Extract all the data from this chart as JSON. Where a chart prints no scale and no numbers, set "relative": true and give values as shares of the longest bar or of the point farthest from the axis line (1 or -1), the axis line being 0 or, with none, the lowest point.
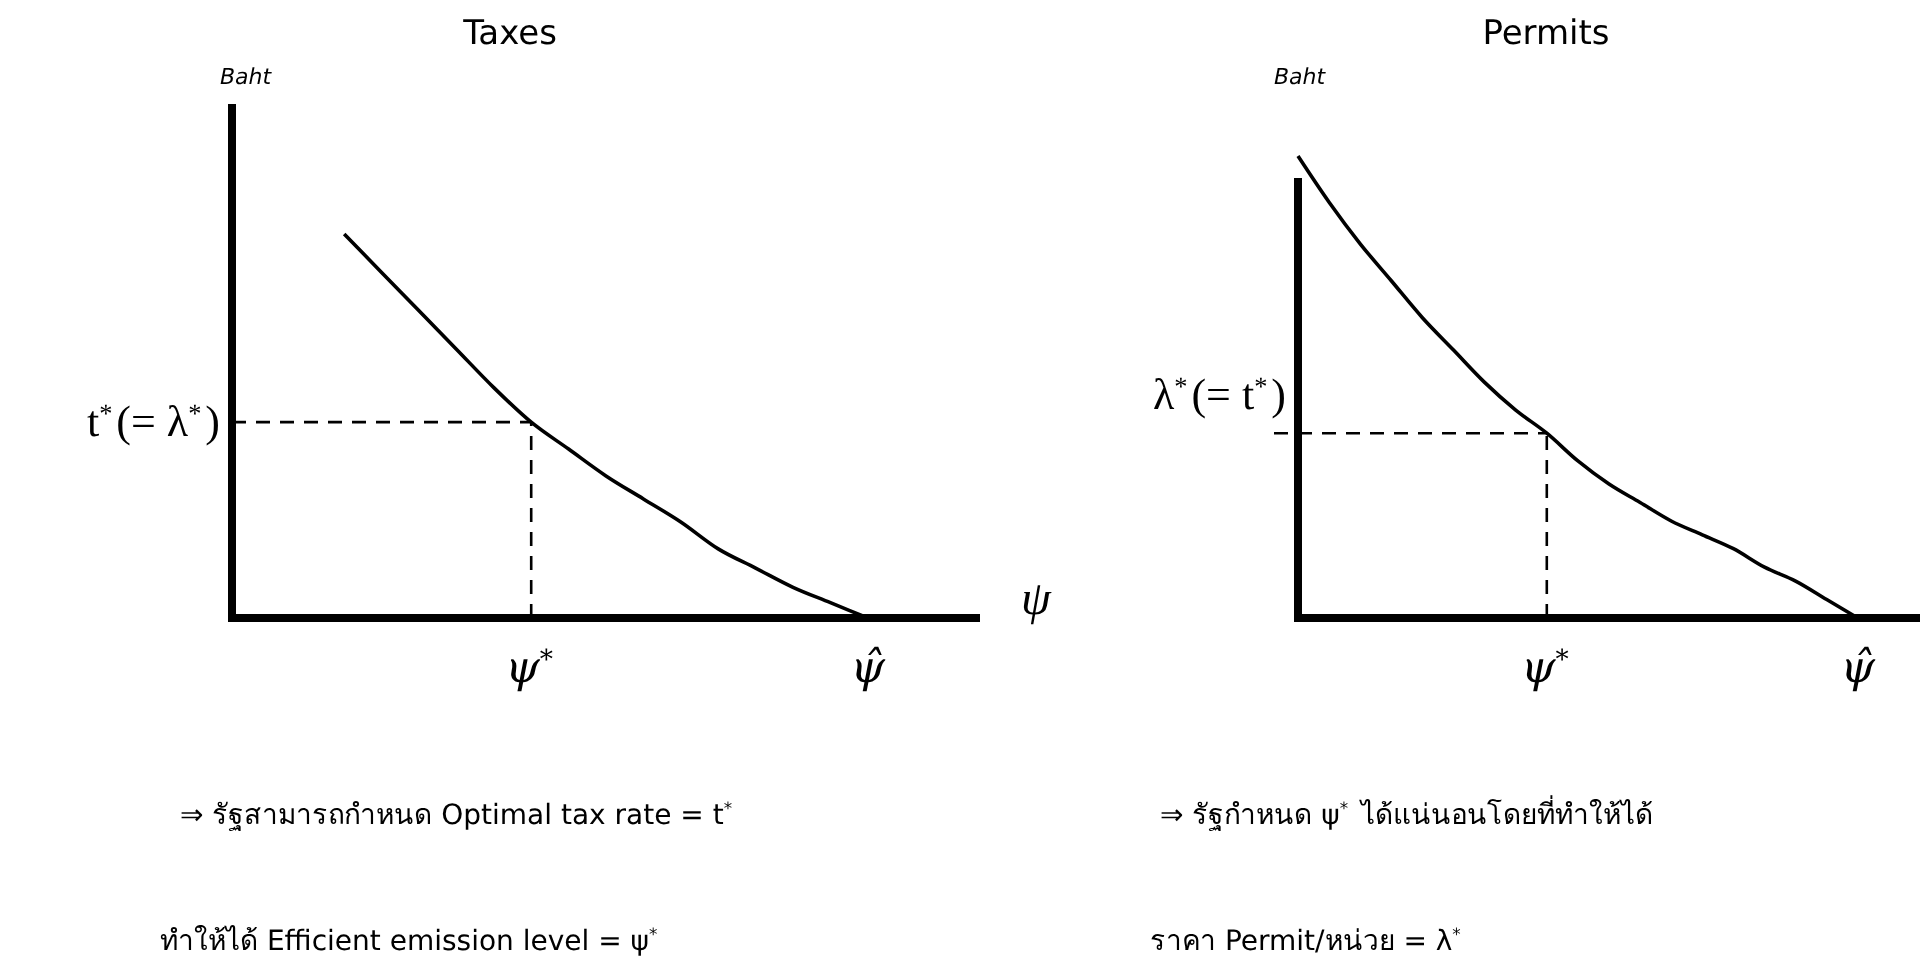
{
  "chart_data": [
    {
      "type": "line",
      "title": "Taxes",
      "ylabel": "Baht",
      "xlabel": "ψ",
      "relative": true,
      "categories": [
        null,
        null,
        null,
        null,
        null,
        null,
        null,
        null,
        "ψ$^{*}$",
        null,
        null,
        null,
        null,
        null,
        null,
        null,
        null,
        "ψ̂",
        null,
        null,
        null
      ],
      "series": [
        {
          "color": "#000000",
          "values": [
            null,
            null,
            null,
            1,
            0.9,
            0.8,
            0.7,
            0.6,
            0.51,
            0.44,
            0.37,
            0.31,
            0.25,
            0.18,
            0.13,
            0.08,
            0.04,
            0,
            null,
            null,
            null
          ]
        }
      ],
      "ref_lines": [
        {
          "axis": "y",
          "value": 0.51,
          "label": "t$^{*}$(= λ$^{*}$)",
          "line_style": "dashed"
        },
        {
          "axis": "x",
          "value": "ψ$^{*}$",
          "label": null,
          "line_style": "dashed"
        }
      ],
      "annotations": [
        "⇒ รัฐสามารถกำหนด Optimal tax rate = t$^{*}$",
        "ทำให้ได้ Efficient emission level = ψ$^{*}$"
      ]
    },
    {
      "type": "line",
      "title": "Permits",
      "ylabel": "Baht",
      "relative": true,
      "categories": [
        null,
        null,
        null,
        null,
        null,
        null,
        null,
        null,
        "ψ$^{*}$",
        null,
        null,
        null,
        null,
        null,
        null,
        null,
        null,
        null,
        "ψ̂",
        null,
        null
      ],
      "series": [
        {
          "color": "#000000",
          "values": [
            1,
            0.9,
            0.81,
            0.73,
            0.65,
            0.58,
            0.51,
            0.45,
            0.4,
            0.34,
            0.29,
            0.25,
            0.21,
            0.18,
            0.15,
            0.11,
            0.08,
            0.04,
            0,
            null,
            null
          ]
        }
      ],
      "ref_lines": [
        {
          "axis": "y",
          "value": 0.4,
          "label": "λ$^{*}$(= t$^{*}$)",
          "line_style": "dashed"
        },
        {
          "axis": "x",
          "value": "ψ$^{*}$",
          "label": null,
          "line_style": "dashed"
        }
      ],
      "annotations": [
        "⇒ รัฐกำหนด ψ$^{*}$ ได้แน่นอนโดยที่ทำให้ได้",
        "ราคา Permit/หน่วย = λ$^{*}$"
      ]
    }
  ]
}
